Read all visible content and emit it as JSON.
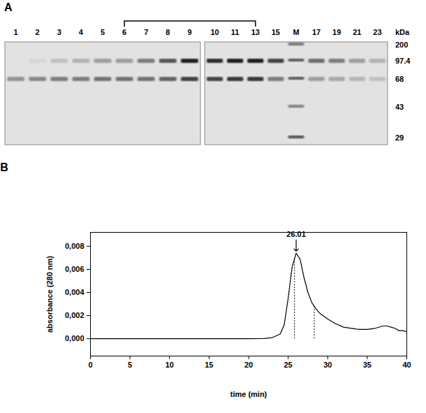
{
  "gel": {
    "label": "A",
    "unit": "kDa",
    "markers": [
      200,
      97.4,
      68,
      43,
      29
    ],
    "band_kDa": [
      97.4,
      68
    ],
    "bracket": {
      "from": "6",
      "to": "13"
    },
    "groups": [
      {
        "lanes": [
          {
            "label": "1",
            "intensity": [
              0.0,
              0.4
            ]
          },
          {
            "label": "2",
            "intensity": [
              0.05,
              0.45
            ]
          },
          {
            "label": "3",
            "intensity": [
              0.15,
              0.5
            ]
          },
          {
            "label": "4",
            "intensity": [
              0.25,
              0.5
            ]
          },
          {
            "label": "5",
            "intensity": [
              0.35,
              0.55
            ]
          },
          {
            "label": "6",
            "intensity": [
              0.35,
              0.55
            ]
          },
          {
            "label": "7",
            "intensity": [
              0.5,
              0.55
            ]
          },
          {
            "label": "8",
            "intensity": [
              0.7,
              0.65
            ]
          },
          {
            "label": "9",
            "intensity": [
              1.0,
              0.8
            ]
          }
        ]
      },
      {
        "lanes": [
          {
            "label": "10",
            "intensity": [
              0.9,
              0.8
            ]
          },
          {
            "label": "11",
            "intensity": [
              1.0,
              0.85
            ]
          },
          {
            "label": "13",
            "intensity": [
              1.0,
              0.85
            ]
          },
          {
            "label": "15",
            "intensity": [
              0.8,
              0.5
            ]
          },
          {
            "label": "M",
            "marker": true,
            "intensity": [
              0.55,
              0.7,
              0.7,
              0.5,
              0.75
            ]
          },
          {
            "label": "17",
            "intensity": [
              0.6,
              0.35
            ]
          },
          {
            "label": "19",
            "intensity": [
              0.5,
              0.3
            ]
          },
          {
            "label": "21",
            "intensity": [
              0.35,
              0.2
            ]
          },
          {
            "label": "23",
            "intensity": [
              0.25,
              0.15
            ]
          }
        ]
      }
    ]
  },
  "chart_data": {
    "type": "line",
    "title": "B",
    "x_label": "time (min)",
    "y_label": "absorbance (280 nm)",
    "color": "#000000",
    "x": [
      0,
      5,
      10,
      15,
      20,
      22,
      23,
      24,
      24.5,
      25,
      25.5,
      26.01,
      26.5,
      27,
      27.5,
      28,
      28.5,
      29,
      30,
      31,
      32,
      33,
      34,
      35,
      36,
      37,
      37.5,
      38,
      38.5,
      39,
      39.5,
      40
    ],
    "values": [
      0,
      0,
      0,
      0,
      0,
      2e-05,
      0.0001,
      0.0004,
      0.0012,
      0.0035,
      0.0062,
      0.0074,
      0.0069,
      0.0053,
      0.004,
      0.0031,
      0.0026,
      0.0022,
      0.0017,
      0.0013,
      0.001,
      0.0009,
      0.0008,
      0.0008,
      0.0009,
      0.0011,
      0.0011,
      0.001,
      0.0009,
      0.0007,
      0.0007,
      0.0006
    ],
    "xlim": [
      0,
      40
    ],
    "xticks": [
      0,
      5,
      10,
      15,
      20,
      25,
      30,
      35,
      40
    ],
    "ylim": [
      -0.0015,
      0.0092
    ],
    "yticks": [
      {
        "value": 0,
        "label": "0,000"
      },
      {
        "value": 0.002,
        "label": "0,002"
      },
      {
        "value": 0.004,
        "label": "0,004"
      },
      {
        "value": 0.006,
        "label": "0,006"
      },
      {
        "value": 0.008,
        "label": "0,008"
      }
    ],
    "annotations": [
      {
        "x": 26.01,
        "label": "26.01"
      }
    ],
    "fraction_bounds": [
      25.8,
      28.3
    ]
  }
}
